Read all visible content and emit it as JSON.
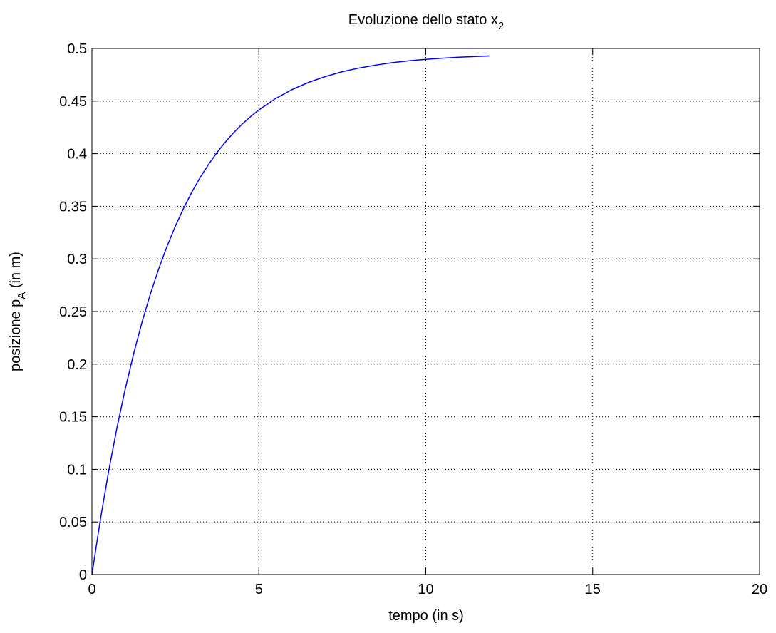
{
  "chart_data": {
    "type": "line",
    "title": {
      "main": "Evoluzione dello stato x",
      "subscript": "2"
    },
    "xlabel": "tempo (in s)",
    "ylabel": {
      "main": "posizione p",
      "subscript": "A",
      "suffix": " (in m)"
    },
    "xlim": [
      0,
      20
    ],
    "ylim": [
      0,
      0.5
    ],
    "xticks": [
      0,
      5,
      10,
      15,
      20
    ],
    "xtick_labels": [
      "0",
      "5",
      "10",
      "15",
      "20"
    ],
    "yticks": [
      0,
      0.05,
      0.1,
      0.15,
      0.2,
      0.25,
      0.3,
      0.35,
      0.4,
      0.45,
      0.5
    ],
    "ytick_labels": [
      "0",
      "0.05",
      "0.1",
      "0.15",
      "0.2",
      "0.25",
      "0.3",
      "0.35",
      "0.4",
      "0.45",
      "0.5"
    ],
    "grid": true,
    "grid_style": "dotted",
    "colors": {
      "line": "#0000ff",
      "axes": "#000000",
      "grid": "#000000",
      "background": "#ffffff"
    },
    "series": [
      {
        "x": [
          0,
          0.25,
          0.5,
          0.75,
          1,
          1.25,
          1.5,
          1.75,
          2,
          2.25,
          2.5,
          2.75,
          3,
          3.25,
          3.5,
          3.75,
          4,
          4.25,
          4.5,
          4.75,
          5,
          5.5,
          6,
          6.5,
          7,
          7.5,
          8,
          8.5,
          9,
          9.5,
          10,
          10.5,
          11,
          11.5,
          11.9
        ],
        "y": [
          0,
          0.0517,
          0.0981,
          0.1396,
          0.1767,
          0.21,
          0.2398,
          0.2666,
          0.2905,
          0.312,
          0.3312,
          0.3484,
          0.3639,
          0.3777,
          0.3901,
          0.4012,
          0.4112,
          0.4201,
          0.4281,
          0.4352,
          0.4416,
          0.4524,
          0.461,
          0.4679,
          0.4734,
          0.4779,
          0.4814,
          0.4842,
          0.4865,
          0.4883,
          0.4897,
          0.4908,
          0.4917,
          0.4924,
          0.4929
        ]
      }
    ]
  }
}
